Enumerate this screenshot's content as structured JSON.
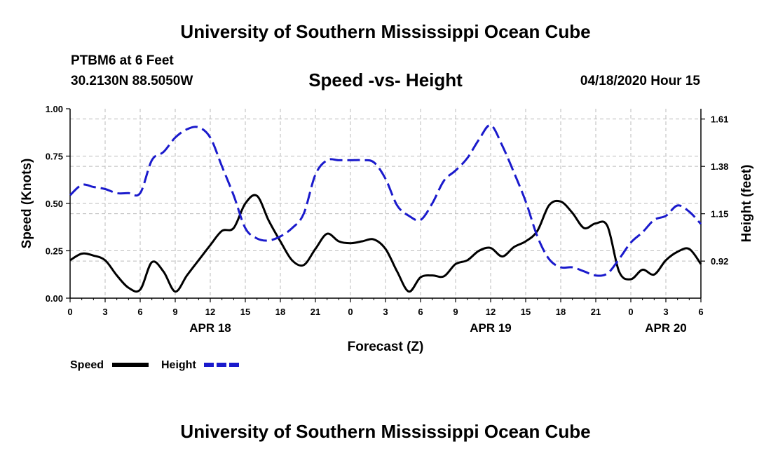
{
  "header": {
    "title": "University of Southern Mississippi Ocean Cube",
    "station": "PTBM6 at 6 Feet",
    "coords": "30.2130N 88.5050W",
    "subtitle": "Speed -vs- Height",
    "datetime": "04/18/2020 Hour 15"
  },
  "footer": {
    "title": "University of Southern Mississippi Ocean Cube"
  },
  "colors": {
    "speed": "#000000",
    "height": "#1a1acc",
    "grid": "#bbbbbb"
  },
  "chart_data": {
    "type": "line",
    "title": "Speed -vs- Height",
    "xlabel": "Forecast (Z)",
    "ylabel": "Speed (Knots)",
    "y2label": "Height (feet)",
    "x_unit": "hours since 04/18 00Z",
    "xlim": [
      0,
      54
    ],
    "ylim": [
      0,
      1.0
    ],
    "y2lim": [
      0.74,
      1.66
    ],
    "grid": true,
    "legend_position": "bottom-left",
    "x_tick_values": [
      0,
      3,
      6,
      9,
      12,
      15,
      18,
      21,
      24,
      27,
      30,
      33,
      36,
      39,
      42,
      45,
      48,
      51,
      54
    ],
    "x_tick_labels": [
      "0",
      "3",
      "6",
      "9",
      "12",
      "15",
      "18",
      "21",
      "0",
      "3",
      "6",
      "9",
      "12",
      "15",
      "18",
      "21",
      "0",
      "3",
      "6"
    ],
    "date_labels": [
      {
        "label": "APR 18",
        "x": 12
      },
      {
        "label": "APR 19",
        "x": 36
      },
      {
        "label": "APR 20",
        "x": 51
      }
    ],
    "y_ticks": [
      "0.00",
      "0.25",
      "0.50",
      "0.75",
      "1.00"
    ],
    "y_tick_values": [
      0,
      0.25,
      0.5,
      0.75,
      1.0
    ],
    "y2_ticks": [
      "0.92",
      "1.15",
      "1.38",
      "1.61"
    ],
    "y2_tick_values": [
      0.92,
      1.15,
      1.38,
      1.61
    ],
    "series": [
      {
        "name": "Speed",
        "axis": "left",
        "style": "solid",
        "x": [
          0,
          1,
          2,
          3,
          4,
          5,
          6,
          7,
          8,
          9,
          10,
          11,
          12,
          13,
          14,
          15,
          16,
          17,
          18,
          19,
          20,
          21,
          22,
          23,
          24,
          25,
          26,
          27,
          28,
          29,
          30,
          31,
          32,
          33,
          34,
          35,
          36,
          37,
          38,
          39,
          40,
          41,
          42,
          43,
          44,
          45,
          46,
          47,
          48,
          49,
          50,
          51,
          52,
          53,
          54
        ],
        "values": [
          0.2,
          0.235,
          0.225,
          0.2,
          0.12,
          0.055,
          0.045,
          0.19,
          0.14,
          0.035,
          0.12,
          0.2,
          0.28,
          0.355,
          0.37,
          0.5,
          0.54,
          0.41,
          0.3,
          0.2,
          0.175,
          0.26,
          0.34,
          0.3,
          0.29,
          0.3,
          0.31,
          0.26,
          0.14,
          0.035,
          0.11,
          0.12,
          0.115,
          0.18,
          0.2,
          0.25,
          0.265,
          0.22,
          0.27,
          0.3,
          0.355,
          0.49,
          0.51,
          0.45,
          0.37,
          0.395,
          0.38,
          0.14,
          0.1,
          0.15,
          0.125,
          0.2,
          0.245,
          0.26,
          0.18
        ]
      },
      {
        "name": "Height",
        "axis": "right",
        "style": "dashed",
        "x": [
          0,
          1,
          2,
          3,
          4,
          5,
          6,
          7,
          8,
          9,
          10,
          11,
          12,
          13,
          14,
          15,
          16,
          17,
          18,
          19,
          20,
          21,
          22,
          23,
          24,
          25,
          26,
          27,
          28,
          29,
          30,
          31,
          32,
          33,
          34,
          35,
          36,
          37,
          38,
          39,
          40,
          41,
          42,
          43,
          44,
          45,
          46,
          47,
          48,
          49,
          50,
          51,
          52,
          53,
          54
        ],
        "values": [
          1.24,
          1.29,
          1.28,
          1.27,
          1.25,
          1.25,
          1.25,
          1.41,
          1.45,
          1.52,
          1.56,
          1.57,
          1.52,
          1.38,
          1.24,
          1.08,
          1.03,
          1.02,
          1.04,
          1.08,
          1.15,
          1.34,
          1.41,
          1.41,
          1.41,
          1.41,
          1.4,
          1.32,
          1.19,
          1.14,
          1.12,
          1.2,
          1.31,
          1.36,
          1.42,
          1.51,
          1.58,
          1.48,
          1.35,
          1.21,
          1.04,
          0.93,
          0.89,
          0.89,
          0.87,
          0.85,
          0.86,
          0.93,
          1.01,
          1.06,
          1.12,
          1.14,
          1.19,
          1.16,
          1.1
        ]
      }
    ]
  }
}
